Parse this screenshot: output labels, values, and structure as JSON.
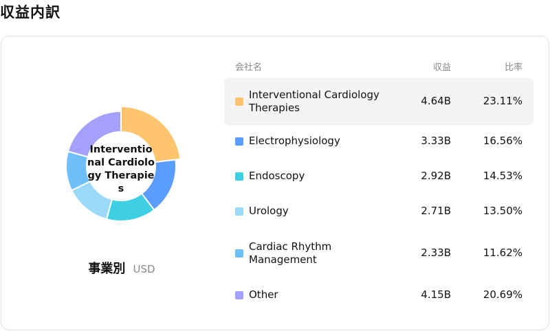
{
  "title": "収益内訳",
  "caption": {
    "title": "事業別",
    "unit": "USD"
  },
  "center_label": "Interventional Cardiology Therapies",
  "table": {
    "headers": {
      "name": "会社名",
      "revenue": "収益",
      "ratio": "比率"
    },
    "rows": [
      {
        "name": "Interventional Cardiology Therapies",
        "revenue": "4.64B",
        "ratio": "23.11%",
        "color": "#FFC46E"
      },
      {
        "name": "Electrophysiology",
        "revenue": "3.33B",
        "ratio": "16.56%",
        "color": "#5B9CFF"
      },
      {
        "name": "Endoscopy",
        "revenue": "2.92B",
        "ratio": "14.53%",
        "color": "#3ECFE4"
      },
      {
        "name": "Urology",
        "revenue": "2.71B",
        "ratio": "13.50%",
        "color": "#9ADAF8"
      },
      {
        "name": "Cardiac Rhythm Management",
        "revenue": "2.33B",
        "ratio": "11.62%",
        "color": "#6FC0FA"
      },
      {
        "name": "Other",
        "revenue": "4.15B",
        "ratio": "20.69%",
        "color": "#A3A1FB"
      }
    ]
  },
  "chart_data": {
    "type": "pie",
    "variant": "donut",
    "unit": "USD",
    "highlighted": "Interventional Cardiology Therapies",
    "categories": [
      "Interventional Cardiology Therapies",
      "Electrophysiology",
      "Endoscopy",
      "Urology",
      "Cardiac Rhythm Management",
      "Other"
    ],
    "values": [
      4.64,
      3.33,
      2.92,
      2.71,
      2.33,
      4.15
    ],
    "percent": [
      23.11,
      16.56,
      14.53,
      13.5,
      11.62,
      20.69
    ],
    "colors": [
      "#FFC46E",
      "#5B9CFF",
      "#3ECFE4",
      "#9ADAF8",
      "#6FC0FA",
      "#A3A1FB"
    ]
  }
}
